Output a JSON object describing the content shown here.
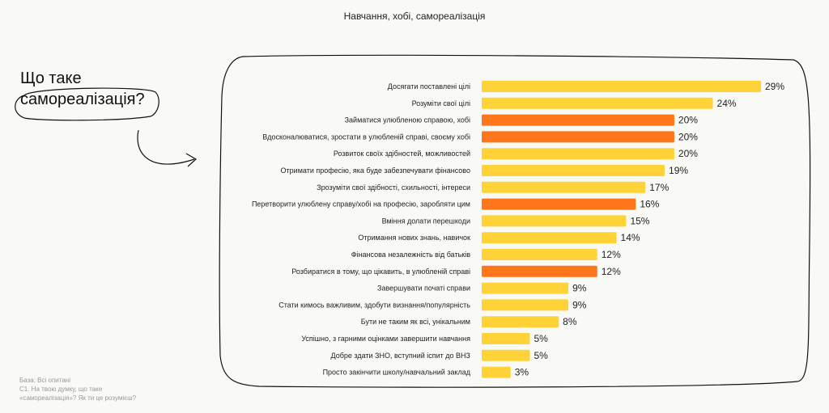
{
  "header": {
    "title": "Навчання, хобі, самореалізація"
  },
  "question": {
    "line1": "Що таке",
    "line2": "самореалізація?"
  },
  "footnote": {
    "base": "База: Всі опитані",
    "q_line1": "С1. На твою думку, що таке",
    "q_line2": "«самореалізація»? Як ти це розумієш?"
  },
  "colors": {
    "yellow": "#FFD338",
    "orange": "#FF751A",
    "background": "#F9F9F5"
  },
  "chart_data": {
    "type": "bar",
    "orientation": "horizontal",
    "categories": [
      "Досягати поставлені цілі",
      "Розуміти свої цілі",
      "Займатися улюбленою справою, хобі",
      "Вдосконалюватися, зростати в улюбленій справі, своєму хобі",
      "Розвиток своїх здібностей, можливостей",
      "Отримати професію, яка буде забезпечувати фінансово",
      "Зрозуміти свої здібності, схильності, інтереси",
      "Перетворити улюблену справу/хобі на професію, заробляти цим",
      "Вміння долати перешкоди",
      "Отримання нових знань, навичок",
      "Фінансова незалежність від батьків",
      "Розбиратися в тому, що цікавить, в улюбленій справі",
      "Завершувати початі справи",
      "Стати кимось важливим, здобути визнання/популярність",
      "Бути не таким як всі, унікальним",
      "Успішно, з гарними оцінками завершити навчання",
      "Добре здати ЗНО, вступний іспит до ВНЗ",
      "Просто закінчити школу/навчальний заклад"
    ],
    "values": [
      29,
      24,
      20,
      20,
      20,
      19,
      17,
      16,
      15,
      14,
      12,
      12,
      9,
      9,
      8,
      5,
      5,
      3
    ],
    "labels": [
      "29%",
      "24%",
      "20%",
      "20%",
      "20%",
      "19%",
      "17%",
      "16%",
      "15%",
      "14%",
      "12%",
      "12%",
      "9%",
      "9%",
      "8%",
      "5%",
      "5%",
      "3%"
    ],
    "highlighted": [
      false,
      false,
      true,
      true,
      false,
      false,
      false,
      true,
      false,
      false,
      false,
      true,
      false,
      false,
      false,
      false,
      false,
      false
    ],
    "unit": "%"
  }
}
